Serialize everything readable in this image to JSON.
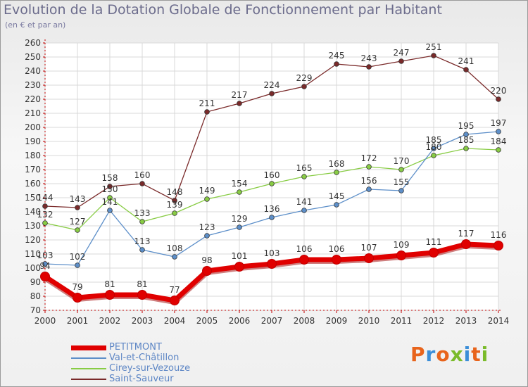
{
  "header": {
    "title": "Evolution de la Dotation Globale de Fonctionnement par Habitant",
    "subtitle": "(en € et par an)"
  },
  "logo": {
    "text": "Proxiti",
    "colors": [
      "#e8641c",
      "#3b8ed8",
      "#e8641c",
      "#7abb2a",
      "#3b8ed8",
      "#e8641c",
      "#7abb2a"
    ]
  },
  "chart_data": {
    "type": "line",
    "x": [
      "2000",
      "2001",
      "2002",
      "2003",
      "2004",
      "2005",
      "2006",
      "2007",
      "2008",
      "2009",
      "2010",
      "2011",
      "2012",
      "2013",
      "2014"
    ],
    "ylim": [
      70,
      260
    ],
    "yticks": [
      70,
      80,
      90,
      100,
      110,
      120,
      130,
      140,
      150,
      160,
      170,
      180,
      190,
      200,
      210,
      220,
      230,
      240,
      250,
      260
    ],
    "grid": true,
    "legend_position": "bottom-left",
    "series": [
      {
        "name": "PETITMONT",
        "color": "#e00000",
        "bold": true,
        "values": [
          94,
          79,
          81,
          81,
          77,
          98,
          101,
          103,
          106,
          106,
          107,
          109,
          111,
          117,
          116
        ],
        "labels": [
          "94",
          "79",
          "81",
          "81",
          "77",
          "98",
          "101",
          "103",
          "106",
          "106",
          "107",
          "109",
          "111",
          "117",
          "116"
        ]
      },
      {
        "name": "Val-et-Châtillon",
        "color": "#5d8fc9",
        "values": [
          103,
          102,
          141,
          113,
          108,
          123,
          129,
          136,
          141,
          145,
          156,
          155,
          185,
          195,
          197
        ],
        "labels": [
          "103",
          "102",
          "141",
          "113",
          "108",
          "123",
          "129",
          "136",
          "141",
          "145",
          "156",
          "155",
          "185",
          "195",
          "197"
        ]
      },
      {
        "name": "Cirey-sur-Vezouze",
        "color": "#88cc44",
        "values": [
          132,
          127,
          150,
          133,
          139,
          149,
          154,
          160,
          165,
          168,
          172,
          170,
          180,
          185,
          184
        ],
        "labels": [
          "132",
          "127",
          "150",
          "133",
          "139",
          "149",
          "154",
          "160",
          "165",
          "168",
          "172",
          "170",
          "180",
          "185",
          "184"
        ]
      },
      {
        "name": "Saint-Sauveur",
        "color": "#7a2a2a",
        "values": [
          144,
          143,
          158,
          160,
          148,
          211,
          217,
          224,
          229,
          245,
          243,
          247,
          251,
          241,
          220
        ],
        "labels": [
          "144",
          "143",
          "158",
          "160",
          "148",
          "211",
          "217",
          "224",
          "229",
          "245",
          "243",
          "247",
          "251",
          "241",
          "220"
        ]
      }
    ]
  }
}
